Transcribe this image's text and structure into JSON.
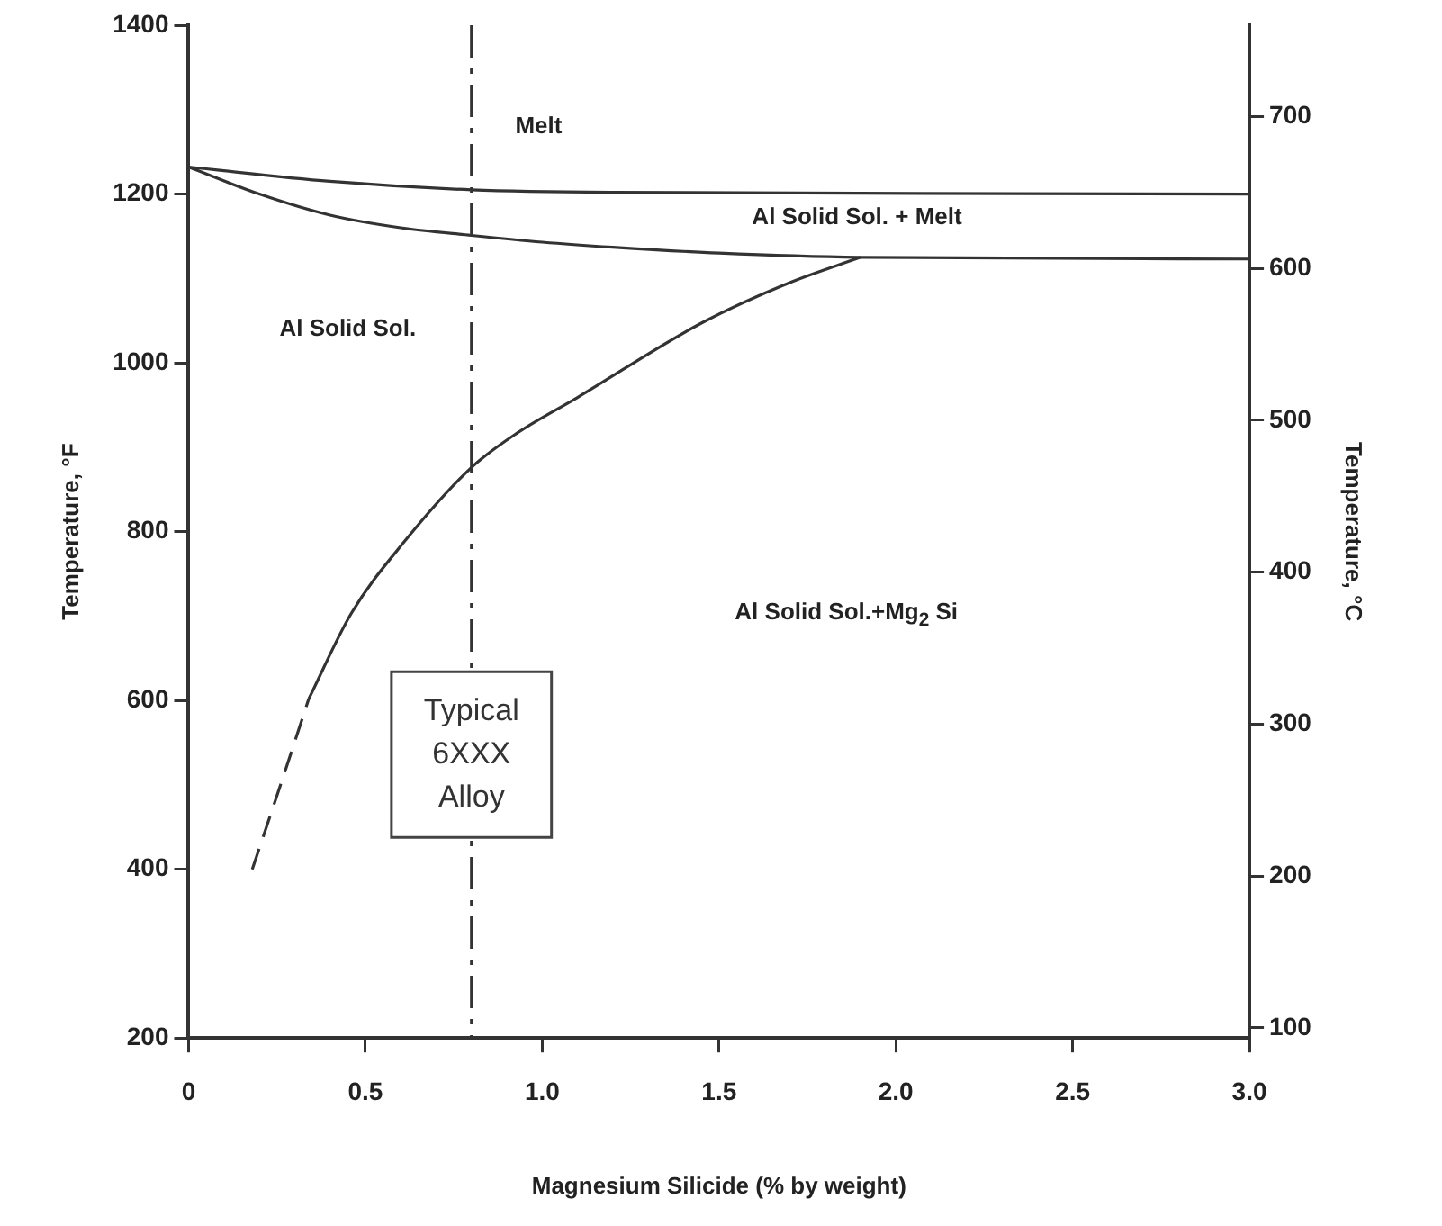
{
  "chart_data": {
    "type": "line",
    "xlabel": "Magnesium Silicide (% by weight)",
    "ylabel": "Temperature, °F",
    "y2label": "Temperature, °C",
    "xlim": [
      0,
      3
    ],
    "xticks": [
      {
        "value": 0,
        "label": "0"
      },
      0.5,
      {
        "value": 1,
        "label": "1.0"
      },
      1.5,
      {
        "value": 2,
        "label": "2.0"
      },
      2.5,
      {
        "value": 3,
        "label": "3.0"
      }
    ],
    "ylim": [
      200,
      1400
    ],
    "yticks": [
      200,
      400,
      600,
      800,
      1000,
      1200,
      1400
    ],
    "y2lim": [
      93.3,
      760
    ],
    "y2ticks": [
      100,
      200,
      300,
      400,
      500,
      600,
      700
    ],
    "grid": false,
    "legend": false,
    "marker": "none",
    "series": [
      {
        "color": "#333333",
        "line_style": "solid",
        "x": [
          0,
          0.4,
          0.8,
          1.2,
          3.0
        ],
        "values": [
          1232,
          1215,
          1205,
          1202,
          1200
        ]
      },
      {
        "color": "#333333",
        "line_style": "solid",
        "x": [
          0,
          0.2,
          0.4,
          0.6,
          0.8,
          1.0,
          1.2,
          1.5,
          1.9,
          3.0
        ],
        "values": [
          1232,
          1200,
          1175,
          1160,
          1151,
          1143,
          1137,
          1130,
          1125,
          1123
        ]
      },
      {
        "color": "#333333",
        "line_style": "solid",
        "x": [
          0.34,
          0.46,
          0.61,
          0.8,
          0.93,
          1.1,
          1.45,
          1.7,
          1.9
        ],
        "values": [
          602,
          703,
          788,
          876,
          917,
          959,
          1047,
          1095,
          1125
        ]
      },
      {
        "color": "#333333",
        "line_style": "dashed",
        "x": [
          0.18,
          0.26,
          0.34
        ],
        "values": [
          400,
          500,
          602
        ]
      }
    ],
    "ref_lines": [
      {
        "axis": "x",
        "value": 0.8,
        "label": "Typical 6XXX Alloy",
        "line_style": "dashed",
        "color": "#333333"
      }
    ],
    "annotations": [
      "Melt",
      "Al Solid Sol. + Melt",
      "Al Solid Sol.",
      "Al Solid Sol.+Mg$_{2}$ Si"
    ]
  }
}
